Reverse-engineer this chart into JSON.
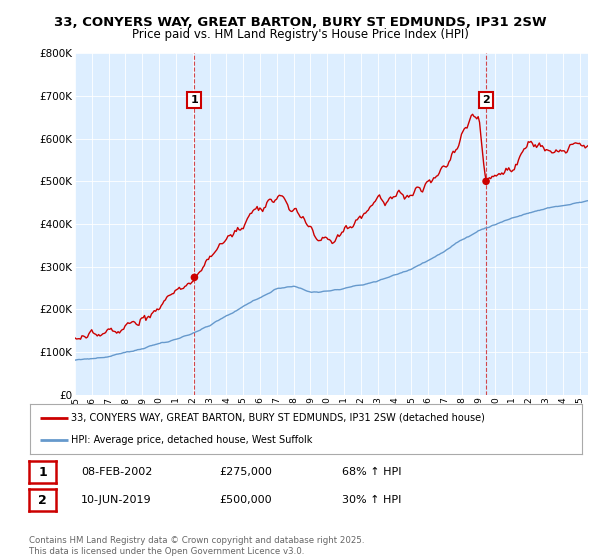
{
  "title": "33, CONYERS WAY, GREAT BARTON, BURY ST EDMUNDS, IP31 2SW",
  "subtitle": "Price paid vs. HM Land Registry's House Price Index (HPI)",
  "legend_line1": "33, CONYERS WAY, GREAT BARTON, BURY ST EDMUNDS, IP31 2SW (detached house)",
  "legend_line2": "HPI: Average price, detached house, West Suffolk",
  "sale1_date": "08-FEB-2002",
  "sale1_price": "£275,000",
  "sale1_hpi": "68% ↑ HPI",
  "sale1_year": 2002.1,
  "sale1_value": 275000,
  "sale2_date": "10-JUN-2019",
  "sale2_price": "£500,000",
  "sale2_hpi": "30% ↑ HPI",
  "sale2_year": 2019.44,
  "sale2_value": 500000,
  "ylim": [
    0,
    800000
  ],
  "xlim_left": 1995.0,
  "xlim_right": 2025.5,
  "yticks": [
    0,
    100000,
    200000,
    300000,
    400000,
    500000,
    600000,
    700000,
    800000
  ],
  "ytick_labels": [
    "£0",
    "£100K",
    "£200K",
    "£300K",
    "£400K",
    "£500K",
    "£600K",
    "£700K",
    "£800K"
  ],
  "plot_bg_color": "#ddeeff",
  "fig_bg_color": "#ffffff",
  "red_color": "#cc0000",
  "blue_color": "#6699cc",
  "footer_text": "Contains HM Land Registry data © Crown copyright and database right 2025.\nThis data is licensed under the Open Government Licence v3.0."
}
